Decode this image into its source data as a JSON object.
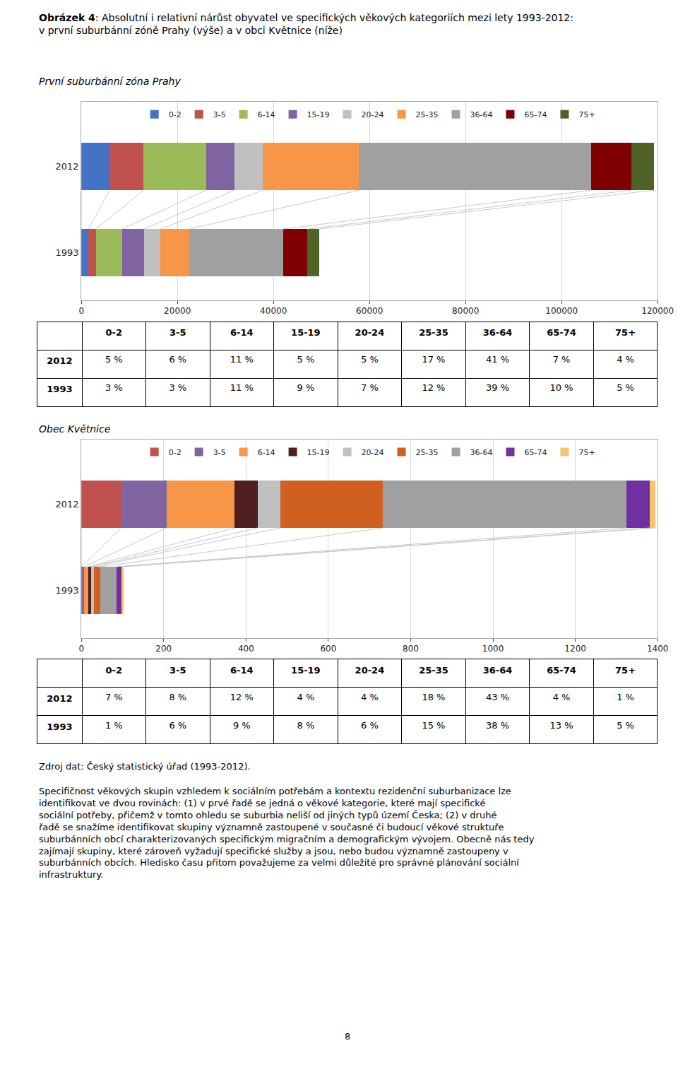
{
  "title": "Obrázek 4: Absolutní i relativní nárůst obyvatel ve specifických věkových kategoriích mezi lety 1993-2012:\nv první suburbánní zóně Prahy (výše) a v obci Květnice (níže)",
  "source": "Zdroj dat: Český statistický úřad (1993-2012).",
  "body_text": "Specifičnost věkových skupin vzhledem k sociálním potřebám a kontextu rezidenční suburbanizace lze identifikovat ve dvou rovinách: (1) v prvé řadě se jedná o věkové kategorie, které mají specifické sociální potřeby, přičemž v tomto ohledu se suburbia neliší od jiných typů území Česka; (2) v druhé řadě se snažíme identifikovat skupiny významně zastoupené v současné či budoucí věkové struktuře suburbánních obcí charakterizovaných specifickým migračním a demografickým vývojem. Obecně nás tedy zajímají skupiny, které zároveň vyžadují specifické služby a jsou, nebo budou významně zastoupeny v suburbánních obcích. Hledisko času přitom považujeme za velmi důležité pro správné plánování sociální infrastruktury.",
  "page_number": "8",
  "chart_data": [
    {
      "type": "bar",
      "orientation": "horizontal",
      "stacked": true,
      "subtitle": "První suburbánní zóna Prahy",
      "categories": [
        "1993",
        "2012"
      ],
      "series": [
        {
          "name": "0-2",
          "color": "#4472C4",
          "values": [
            1500,
            5900
          ]
        },
        {
          "name": "3-5",
          "color": "#C0504D",
          "values": [
            1500,
            7080
          ]
        },
        {
          "name": "6-14",
          "color": "#9BBB59",
          "values": [
            5500,
            12980
          ]
        },
        {
          "name": "15-19",
          "color": "#8064A2",
          "values": [
            4500,
            5900
          ]
        },
        {
          "name": "20-24",
          "color": "#C0C0C0",
          "values": [
            3500,
            5900
          ]
        },
        {
          "name": "25-35",
          "color": "#F79646",
          "values": [
            6000,
            20060
          ]
        },
        {
          "name": "36-64",
          "color": "#A0A0A0",
          "values": [
            19500,
            48380
          ]
        },
        {
          "name": "65-74",
          "color": "#7F0000",
          "values": [
            5000,
            8260
          ]
        },
        {
          "name": "75+",
          "color": "#4F6228",
          "values": [
            2500,
            4720
          ]
        }
      ],
      "xlim": [
        0,
        120000
      ],
      "xticks": [
        0,
        20000,
        40000,
        60000,
        80000,
        100000,
        120000
      ],
      "grid": true,
      "legend": "top",
      "table": {
        "header": [
          null,
          "0-2",
          "3-5",
          "6-14",
          "15-19",
          "20-24",
          "25-35",
          "36-64",
          "65-74",
          "75+"
        ],
        "rows": [
          [
            "2012",
            "5 %",
            "6 %",
            "11 %",
            "5 %",
            "5 %",
            "17 %",
            "41 %",
            "7 %",
            "4 %"
          ],
          [
            "1993",
            "3 %",
            "3 %",
            "11 %",
            "9 %",
            "7 %",
            "12 %",
            "39 %",
            "10 %",
            "5 %"
          ]
        ]
      }
    },
    {
      "type": "bar",
      "orientation": "horizontal",
      "stacked": true,
      "subtitle": "Obec Květnice",
      "categories": [
        "1993",
        "2012"
      ],
      "series": [
        {
          "name": "0-2",
          "color": "#C0504D",
          "values": [
            1.02,
            96.6
          ]
        },
        {
          "name": "3-5",
          "color": "#8064A2",
          "values": [
            6.12,
            110.4
          ]
        },
        {
          "name": "6-14",
          "color": "#F79646",
          "values": [
            9.18,
            165.6
          ]
        },
        {
          "name": "15-19",
          "color": "#4F1F1F",
          "values": [
            8.16,
            55.2
          ]
        },
        {
          "name": "20-24",
          "color": "#C0C0C0",
          "values": [
            6.12,
            55.2
          ]
        },
        {
          "name": "25-35",
          "color": "#D06020",
          "values": [
            15.3,
            248.4
          ]
        },
        {
          "name": "36-64",
          "color": "#A0A0A0",
          "values": [
            38.76,
            593.4
          ]
        },
        {
          "name": "65-74",
          "color": "#7030A0",
          "values": [
            13.26,
            55.2
          ]
        },
        {
          "name": "75+",
          "color": "#F7C46C",
          "values": [
            5.1,
            13.8
          ]
        }
      ],
      "xlim": [
        0,
        1400
      ],
      "xticks": [
        0,
        200,
        400,
        600,
        800,
        1000,
        1200,
        1400
      ],
      "grid": true,
      "legend": "top",
      "table": {
        "header": [
          null,
          "0-2",
          "3-5",
          "6-14",
          "15-19",
          "20-24",
          "25-35",
          "36-64",
          "65-74",
          "75+"
        ],
        "rows": [
          [
            "2012",
            "7 %",
            "8 %",
            "12 %",
            "4 %",
            "4 %",
            "18 %",
            "43 %",
            "4 %",
            "1 %"
          ],
          [
            "1993",
            "1 %",
            "6 %",
            "9 %",
            "8 %",
            "6 %",
            "15 %",
            "38 %",
            "13 %",
            "5 %"
          ]
        ]
      }
    }
  ]
}
